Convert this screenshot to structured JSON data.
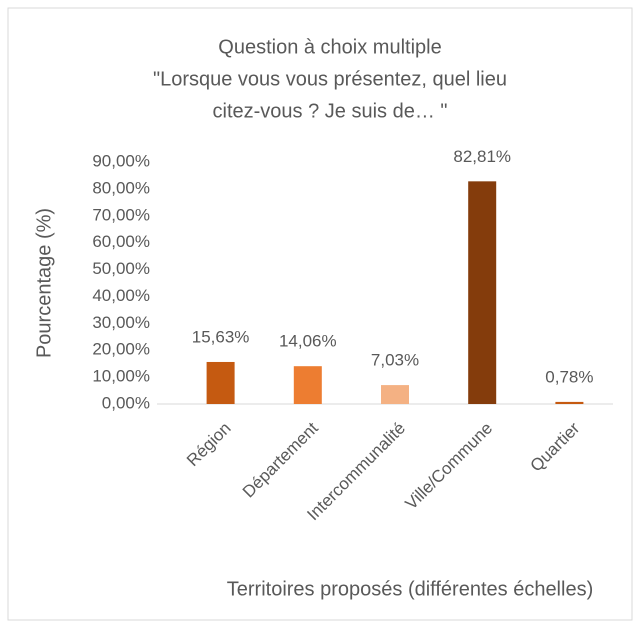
{
  "chart_data": {
    "type": "bar",
    "title": [
      "Question à choix multiple",
      "\"Lorsque vous vous présentez, quel lieu",
      "citez-vous ? Je suis de… \""
    ],
    "ylabel": "Pourcentage (%)",
    "xlabel": "Territoires proposés (différentes échelles)",
    "categories": [
      "Région",
      "Département",
      "Intercommunalité",
      "Ville/Commune",
      "Quartier"
    ],
    "values": [
      15.63,
      14.06,
      7.03,
      82.81,
      0.78
    ],
    "value_labels": [
      "15,63%",
      "14,06%",
      "7,03%",
      "82,81%",
      "0,78%"
    ],
    "colors": [
      "#c55a11",
      "#ed7d31",
      "#f4b183",
      "#843c0c",
      "#c55a11"
    ],
    "ylim": [
      0,
      90
    ],
    "yticks": [
      {
        "value": 0,
        "label": "0,00%"
      },
      {
        "value": 10,
        "label": "10,00%"
      },
      {
        "value": 20,
        "label": "20,00%"
      },
      {
        "value": 30,
        "label": "30,00%"
      },
      {
        "value": 40,
        "label": "40,00%"
      },
      {
        "value": 50,
        "label": "50,00%"
      },
      {
        "value": 60,
        "label": "60,00%"
      },
      {
        "value": 70,
        "label": "70,00%"
      },
      {
        "value": 80,
        "label": "80,00%"
      },
      {
        "value": 90,
        "label": "90,00%"
      }
    ],
    "grid": false
  }
}
